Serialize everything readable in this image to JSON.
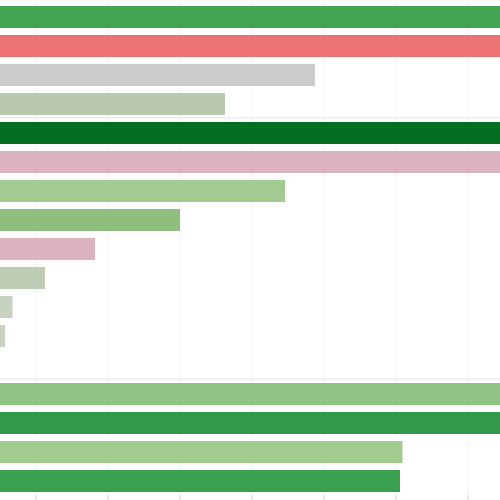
{
  "chart_data": {
    "type": "bar",
    "orientation": "horizontal",
    "title": "",
    "xlabel": "",
    "ylabel": "",
    "xlim": [
      0,
      100
    ],
    "grid": true,
    "legend": "none",
    "bars": [
      {
        "value": 100,
        "color": "#43a452"
      },
      {
        "value": 100,
        "color": "#ec7273"
      },
      {
        "value": 63,
        "color": "#cccccc"
      },
      {
        "value": 45,
        "color": "#bac8b0"
      },
      {
        "value": 100,
        "color": "#036d22"
      },
      {
        "value": 100,
        "color": "#ddb3bf"
      },
      {
        "value": 57,
        "color": "#a1cb90"
      },
      {
        "value": 36,
        "color": "#8ebf7f"
      },
      {
        "value": 19,
        "color": "#ddb3bf"
      },
      {
        "value": 9,
        "color": "#bdcdb5"
      },
      {
        "value": 2.5,
        "color": "#c8d2c0"
      },
      {
        "value": 1,
        "color": "#c8d2c0"
      },
      {
        "value": 100,
        "color": "#8fc383"
      },
      {
        "value": 100,
        "color": "#33994a"
      },
      {
        "value": 80.5,
        "color": "#a2cb90"
      },
      {
        "value": 80,
        "color": "#39a04f"
      }
    ]
  }
}
